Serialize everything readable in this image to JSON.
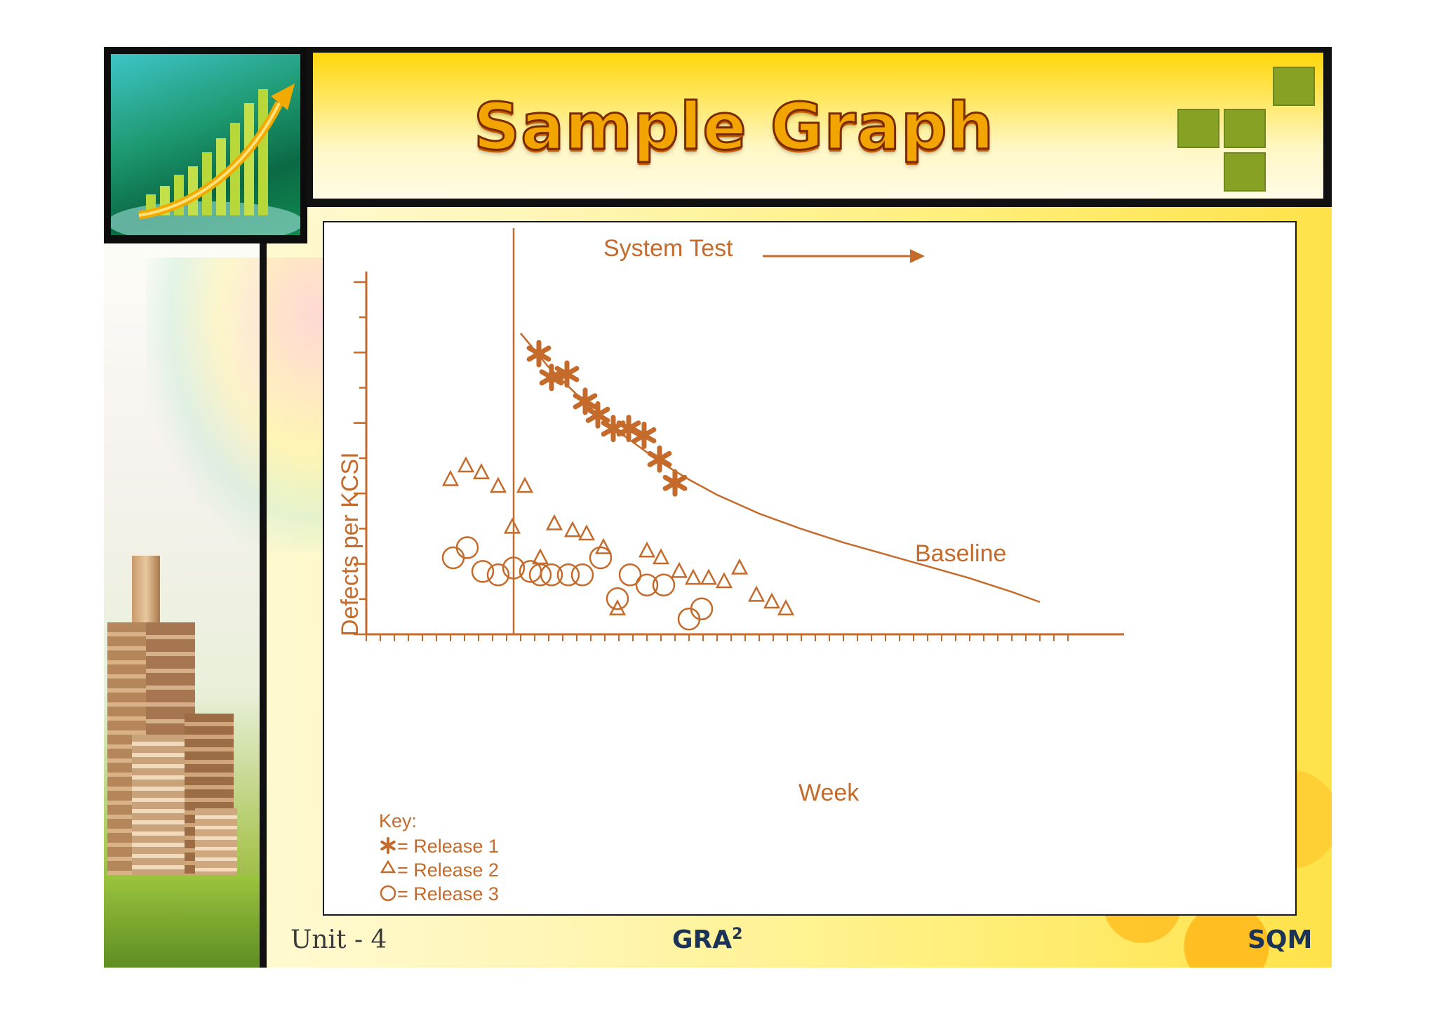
{
  "slide": {
    "title": "Sample Graph",
    "footer_left": "Unit - 4",
    "footer_center_base": "GRA",
    "footer_center_sup": "2",
    "footer_right": "SQM"
  },
  "colors": {
    "chart_ink": "#c46a2a",
    "header_yellow": "#ffd60a",
    "accent_green": "#86a123"
  },
  "chart_data": {
    "type": "scatter",
    "xlabel": "Week",
    "ylabel": "Defects per KCSI",
    "grid": false,
    "xlim": [
      0,
      50
    ],
    "ylim": [
      0,
      10
    ],
    "annotations": {
      "system_test_label": "System Test",
      "system_test_start_week": 10.5,
      "baseline_label": "Baseline"
    },
    "key": {
      "title": "Key:",
      "entries": [
        "= Release 1",
        "= Release 2",
        "= Release 3"
      ]
    },
    "series": [
      {
        "name": "Release 1",
        "marker": "star",
        "x": [
          12.3,
          13.2,
          14.3,
          15.6,
          16.5,
          17.6,
          18.7,
          19.8,
          20.9,
          22.0
        ],
        "y": [
          8.0,
          7.3,
          7.4,
          6.6,
          6.2,
          5.8,
          5.8,
          5.6,
          4.9,
          4.2
        ]
      },
      {
        "name": "Release 2",
        "marker": "triangle",
        "x": [
          6.0,
          7.1,
          8.2,
          9.4,
          11.3,
          10.4,
          13.4,
          14.7,
          15.7,
          16.9,
          12.4,
          20.0,
          21.0,
          17.9,
          22.3,
          23.3,
          24.4,
          25.5,
          26.6,
          27.8,
          28.9,
          29.9
        ],
        "y": [
          4.3,
          4.7,
          4.5,
          4.1,
          4.1,
          2.9,
          3.0,
          2.8,
          2.7,
          2.3,
          2.0,
          2.2,
          2.0,
          0.5,
          1.6,
          1.4,
          1.4,
          1.3,
          1.7,
          0.9,
          0.7,
          0.5
        ],
        "labels": []
      },
      {
        "name": "Release 3",
        "marker": "circle",
        "x": [
          6.2,
          7.2,
          8.3,
          9.4,
          10.5,
          11.7,
          12.4,
          13.2,
          14.4,
          15.4,
          16.7,
          18.8,
          20.0,
          21.2,
          17.9,
          23.0,
          23.9
        ],
        "y": [
          2.0,
          2.3,
          1.6,
          1.5,
          1.7,
          1.6,
          1.5,
          1.5,
          1.5,
          1.5,
          2.0,
          1.5,
          1.2,
          1.2,
          0.8,
          0.2,
          0.5
        ]
      },
      {
        "name": "Baseline",
        "marker": "line",
        "x": [
          11.0,
          13,
          15,
          17,
          19,
          21,
          23,
          25,
          28,
          31,
          34,
          37,
          40,
          43,
          46,
          48.0
        ],
        "y": [
          8.6,
          7.6,
          6.8,
          6.0,
          5.4,
          4.8,
          4.3,
          3.85,
          3.3,
          2.85,
          2.45,
          2.1,
          1.75,
          1.4,
          1.0,
          0.7
        ]
      }
    ]
  }
}
